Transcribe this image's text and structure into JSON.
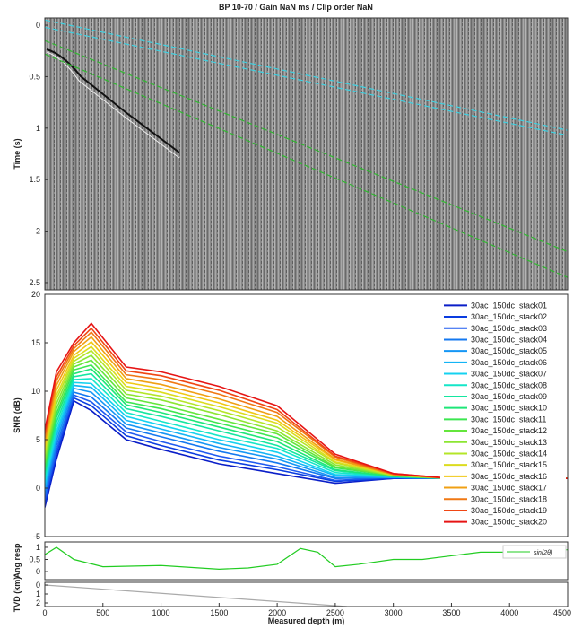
{
  "chart_data": [
    {
      "type": "line",
      "title": "BP 10-70  / Gain NaN ms  / Clip order NaN",
      "ylabel": "Time (s)",
      "x": [
        0,
        4500
      ],
      "xlim": [
        0,
        4500
      ],
      "ylim": [
        -0.07,
        2.57
      ],
      "y_inverted": true,
      "yticks": [
        0,
        0.5,
        1,
        1.5,
        2,
        2.5
      ],
      "line_style": "dashed",
      "series": [
        {
          "color": "#40d0e0",
          "values": [
            -0.05,
            1.02
          ]
        },
        {
          "color": "#40d0e0",
          "values": [
            0.02,
            1.07
          ]
        },
        {
          "color": "#30b830",
          "values": [
            0.15,
            2.2
          ]
        },
        {
          "color": "#30b830",
          "values": [
            0.28,
            2.45
          ]
        }
      ]
    },
    {
      "type": "line",
      "ylabel": "SNR (dB)",
      "legend": "upper right",
      "x": [
        0,
        100,
        250,
        400,
        700,
        1000,
        1500,
        2000,
        2500,
        3000,
        3500,
        4500
      ],
      "xlim": [
        0,
        4500
      ],
      "ylim": [
        -5,
        20
      ],
      "yticks": [
        -5,
        0,
        5,
        10,
        15,
        20
      ],
      "series": [
        {
          "name": "30ac_150dc_stack01",
          "color": "#0a1ec8",
          "values": [
            -2,
            3,
            9,
            8,
            5,
            4,
            2.5,
            1.5,
            0.5,
            1,
            1,
            1
          ]
        },
        {
          "name": "30ac_150dc_stack02",
          "color": "#0a3ce0",
          "values": [
            -1.6,
            3.5,
            9.3,
            8.5,
            5.4,
            4.4,
            2.9,
            1.9,
            0.7,
            1,
            1,
            1
          ]
        },
        {
          "name": "30ac_150dc_stack03",
          "color": "#1e5af0",
          "values": [
            -1.2,
            3.9,
            9.6,
            8.9,
            5.8,
            4.8,
            3.3,
            2.2,
            0.8,
            1.1,
            1,
            1
          ]
        },
        {
          "name": "30ac_150dc_stack04",
          "color": "#1478f0",
          "values": [
            -0.7,
            4.4,
            9.9,
            9.4,
            6.2,
            5.3,
            3.8,
            2.6,
            1,
            1.1,
            1,
            1
          ]
        },
        {
          "name": "30ac_150dc_stack05",
          "color": "#1496f5",
          "values": [
            -0.3,
            4.9,
            10.3,
            9.9,
            6.6,
            5.7,
            4.2,
            3,
            1.1,
            1.1,
            1,
            1
          ]
        },
        {
          "name": "30ac_150dc_stack06",
          "color": "#14b4f5",
          "values": [
            0.1,
            5.4,
            10.6,
            10.4,
            7,
            6.1,
            4.6,
            3.3,
            1.3,
            1.1,
            1,
            1
          ]
        },
        {
          "name": "30ac_150dc_stack07",
          "color": "#14d2f0",
          "values": [
            0.5,
            5.8,
            10.9,
            10.8,
            7.4,
            6.5,
            5,
            3.7,
            1.4,
            1.2,
            1,
            1
          ]
        },
        {
          "name": "30ac_150dc_stack08",
          "color": "#14e6c8",
          "values": [
            0.9,
            6.3,
            11.2,
            11.3,
            7.8,
            6.9,
            5.4,
            4.1,
            1.6,
            1.2,
            1,
            1
          ]
        },
        {
          "name": "30ac_150dc_stack09",
          "color": "#14e6a0",
          "values": [
            1.4,
            6.8,
            11.5,
            11.8,
            8.2,
            7.4,
            5.9,
            4.4,
            1.8,
            1.2,
            1,
            1
          ]
        },
        {
          "name": "30ac_150dc_stack10",
          "color": "#1ee678",
          "values": [
            1.8,
            7.3,
            11.8,
            12.3,
            8.6,
            7.8,
            6.3,
            4.8,
            1.9,
            1.2,
            1,
            1
          ]
        },
        {
          "name": "30ac_150dc_stack11",
          "color": "#3ce650",
          "values": [
            2.2,
            7.7,
            12.2,
            12.7,
            8.9,
            8.2,
            6.7,
            5.2,
            2.1,
            1.3,
            1,
            1
          ]
        },
        {
          "name": "30ac_150dc_stack12",
          "color": "#64e63c",
          "values": [
            2.6,
            8.2,
            12.5,
            13.2,
            9.3,
            8.6,
            7.1,
            5.6,
            2.2,
            1.3,
            1,
            1
          ]
        },
        {
          "name": "30ac_150dc_stack13",
          "color": "#8ce632",
          "values": [
            3.1,
            8.7,
            12.8,
            13.7,
            9.7,
            9.1,
            7.6,
            5.9,
            2.4,
            1.3,
            1,
            1
          ]
        },
        {
          "name": "30ac_150dc_stack14",
          "color": "#b4e628",
          "values": [
            3.5,
            9.2,
            13.1,
            14.2,
            10.1,
            9.5,
            8,
            6.3,
            2.6,
            1.3,
            1,
            1
          ]
        },
        {
          "name": "30ac_150dc_stack15",
          "color": "#dcdc1e",
          "values": [
            3.9,
            9.6,
            13.4,
            14.6,
            10.5,
            9.9,
            8.4,
            6.7,
            2.7,
            1.4,
            1,
            1
          ]
        },
        {
          "name": "30ac_150dc_stack16",
          "color": "#f0c814",
          "values": [
            4.3,
            10.1,
            13.7,
            15.1,
            10.9,
            10.3,
            8.8,
            7,
            2.9,
            1.4,
            1,
            1
          ]
        },
        {
          "name": "30ac_150dc_stack17",
          "color": "#f0a014",
          "values": [
            4.7,
            10.6,
            14.1,
            15.6,
            11.3,
            10.7,
            9.2,
            7.4,
            3,
            1.4,
            1,
            1
          ]
        },
        {
          "name": "30ac_150dc_stack18",
          "color": "#f07814",
          "values": [
            5.2,
            11.1,
            14.4,
            16.1,
            11.7,
            11.2,
            9.7,
            7.8,
            3.2,
            1.4,
            1,
            1
          ]
        },
        {
          "name": "30ac_150dc_stack19",
          "color": "#f04614",
          "values": [
            5.6,
            11.5,
            14.7,
            16.5,
            12.1,
            11.6,
            10.1,
            8.1,
            3.3,
            1.5,
            1,
            1
          ]
        },
        {
          "name": "30ac_150dc_stack20",
          "color": "#e61414",
          "values": [
            6,
            12,
            15,
            17,
            12.5,
            12,
            10.5,
            8.5,
            3.5,
            1.5,
            1,
            1
          ]
        }
      ]
    },
    {
      "type": "line",
      "ylabel": "Ang resp",
      "legend": "upper right",
      "x": [
        0,
        100,
        250,
        500,
        1000,
        1500,
        1750,
        2000,
        2200,
        2350,
        2500,
        2700,
        3000,
        3250,
        3500,
        3750,
        4000,
        4500
      ],
      "xlim": [
        0,
        4500
      ],
      "ylim": [
        -0.33,
        1.22
      ],
      "yticks": [
        0,
        0.5,
        1
      ],
      "series": [
        {
          "name": "sin(2θ)",
          "color": "#22cc22",
          "values": [
            0.7,
            1,
            0.5,
            0.2,
            0.25,
            0.1,
            0.15,
            0.3,
            0.95,
            0.8,
            0.2,
            0.3,
            0.5,
            0.5,
            0.65,
            0.8,
            0.8,
            0.9
          ]
        }
      ]
    },
    {
      "type": "line",
      "ylabel": "TVD (km)",
      "xlabel": "Measured depth (m)",
      "x": [
        0,
        2600
      ],
      "xlim": [
        0,
        4500
      ],
      "ylim": [
        -0.3,
        2.4
      ],
      "y_inverted": true,
      "yticks": [
        0,
        1,
        2
      ],
      "xticks": [
        0,
        500,
        1000,
        1500,
        2000,
        2500,
        3000,
        3500,
        4000,
        4500
      ],
      "series": [
        {
          "color": "#aaaaaa",
          "values": [
            0,
            2.4
          ]
        }
      ]
    }
  ]
}
